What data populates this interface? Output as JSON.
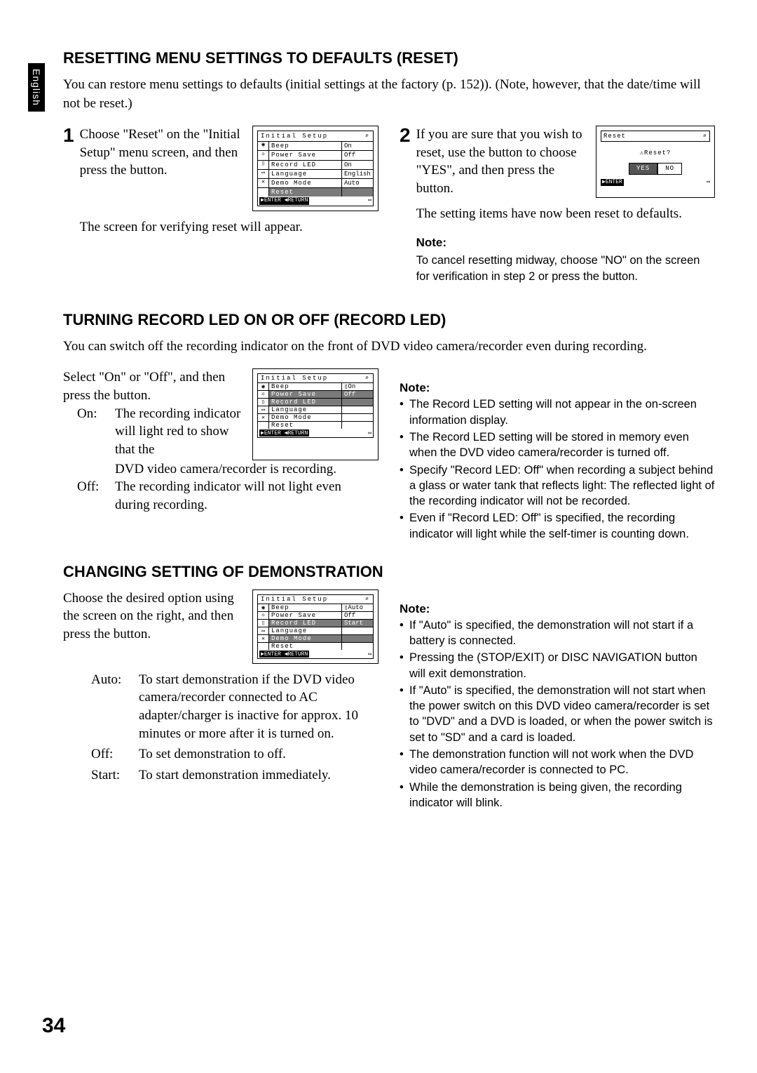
{
  "lang_tab": "English",
  "page_number": "34",
  "section1": {
    "heading": "RESETTING MENU SETTINGS TO DEFAULTS (RESET)",
    "intro": "You can restore menu settings to defaults (initial settings at the factory (p. 152)). (Note, however, that the date/time will not be reset.)",
    "step1_num": "1",
    "step1_text": "Choose \"Reset\" on the \"Initial Setup\" menu screen, and then press the        button.",
    "step1_after": "The screen for verifying reset will appear.",
    "step2_num": "2",
    "step2_text": "If you are sure that you wish to reset, use the    button to choose \"YES\", and then press the        button.",
    "step2_icon": "◁",
    "step2_after": "The setting items have now been reset to defaults.",
    "note_head": "Note:",
    "note_body": "To cancel resetting midway, choose \"NO\" on the screen for verification in step 2 or press the      button.",
    "menu1": {
      "title": "Initial Setup",
      "rows": [
        {
          "icon": "◉",
          "label": "Beep",
          "val": "On",
          "hl": false
        },
        {
          "icon": "☼",
          "label": "Power Save",
          "val": "Off",
          "hl": false
        },
        {
          "icon": "▯",
          "label": "Record LED",
          "val": "On",
          "hl": false
        },
        {
          "icon": "▭",
          "label": "Language",
          "val": "English",
          "hl": false
        },
        {
          "icon": "✕",
          "label": "Demo Mode",
          "val": "Auto",
          "hl": false
        },
        {
          "icon": "",
          "label": "Reset",
          "val": "",
          "hl": true
        }
      ],
      "footer_l": "▶ENTER  ◀RETURN",
      "footer_r": "▭"
    },
    "reset_box": {
      "title": "Reset",
      "question": "⚠Reset?",
      "yes": "YES",
      "no": "NO",
      "footer_l": "▶ENTER",
      "footer_r": "▭"
    }
  },
  "section2": {
    "heading": "TURNING RECORD LED ON OR OFF (RECORD LED)",
    "intro": "You can switch off the recording indicator on the front of DVD video camera/recorder even during recording.",
    "select_text": "Select \"On\" or \"Off\", and then press the        button.",
    "on_label": "On:",
    "on_text": "The recording indicator will light red to show that the DVD video camera/recorder is recording.",
    "off_label": "Off:",
    "off_text": "The recording indicator will not light even during recording.",
    "menu": {
      "title": "Initial Setup",
      "rows": [
        {
          "icon": "◉",
          "label": "Beep",
          "val": "▯On",
          "hl": false
        },
        {
          "icon": "☼",
          "label": "Power Save",
          "val": "Off",
          "hl": true
        },
        {
          "icon": "▯",
          "label": "Record LED",
          "val": "",
          "hl": true
        },
        {
          "icon": "▭",
          "label": "Language",
          "val": "",
          "hl": false
        },
        {
          "icon": "✕",
          "label": "Demo Mode",
          "val": "",
          "hl": false
        },
        {
          "icon": "",
          "label": "Reset",
          "val": "",
          "hl": false
        }
      ],
      "footer_l": "▶ENTER  ◀RETURN",
      "footer_r": "▭"
    },
    "note_head": "Note:",
    "notes": [
      "The Record LED setting will not appear in the on-screen information display.",
      "The Record LED setting will be stored in memory even when the DVD video camera/recorder is turned off.",
      "Specify \"Record LED: Off\" when recording a subject behind a glass or water tank that reflects light: The reflected light of the recording indicator will not be recorded.",
      "Even if \"Record LED: Off\" is specified, the recording indicator will light while the self-timer is counting down."
    ]
  },
  "section3": {
    "heading": "CHANGING SETTING OF DEMONSTRATION",
    "intro": "Choose the desired option using the screen on the right, and then press the        button.",
    "auto_label": "Auto:",
    "auto_text": "To start demonstration if the DVD video camera/recorder connected to AC adapter/charger is inactive for approx. 10 minutes or more after it is turned on.",
    "off_label": "Off:",
    "off_text": "To set demonstration to off.",
    "start_label": "Start:",
    "start_text": "To start demonstration immediately.",
    "menu": {
      "title": "Initial Setup",
      "rows": [
        {
          "icon": "◉",
          "label": "Beep",
          "val": "▯Auto",
          "hl": false
        },
        {
          "icon": "☼",
          "label": "Power Save",
          "val": "Off",
          "hl": false
        },
        {
          "icon": "▯",
          "label": "Record LED",
          "val": "Start",
          "hl": true
        },
        {
          "icon": "▭",
          "label": "Language",
          "val": "",
          "hl": false
        },
        {
          "icon": "✕",
          "label": "Demo Mode",
          "val": "",
          "hl": true
        },
        {
          "icon": "",
          "label": "Reset",
          "val": "",
          "hl": false
        }
      ],
      "footer_l": "▶ENTER  ◀RETURN",
      "footer_r": "▭"
    },
    "note_head": "Note:",
    "notes": [
      "If \"Auto\" is specified, the demonstration will not start if a battery is connected.",
      "Pressing the      (STOP/EXIT) or DISC NAVIGATION button will exit demonstration.",
      "If \"Auto\" is specified, the demonstration will not start when the power switch on this DVD video camera/recorder is set to \"DVD\" and a DVD is loaded, or when the power switch is set to \"SD\" and a card is loaded.",
      "The demonstration function will not work when the DVD video camera/recorder is connected to PC.",
      "While the demonstration is being given, the recording indicator will blink."
    ]
  }
}
